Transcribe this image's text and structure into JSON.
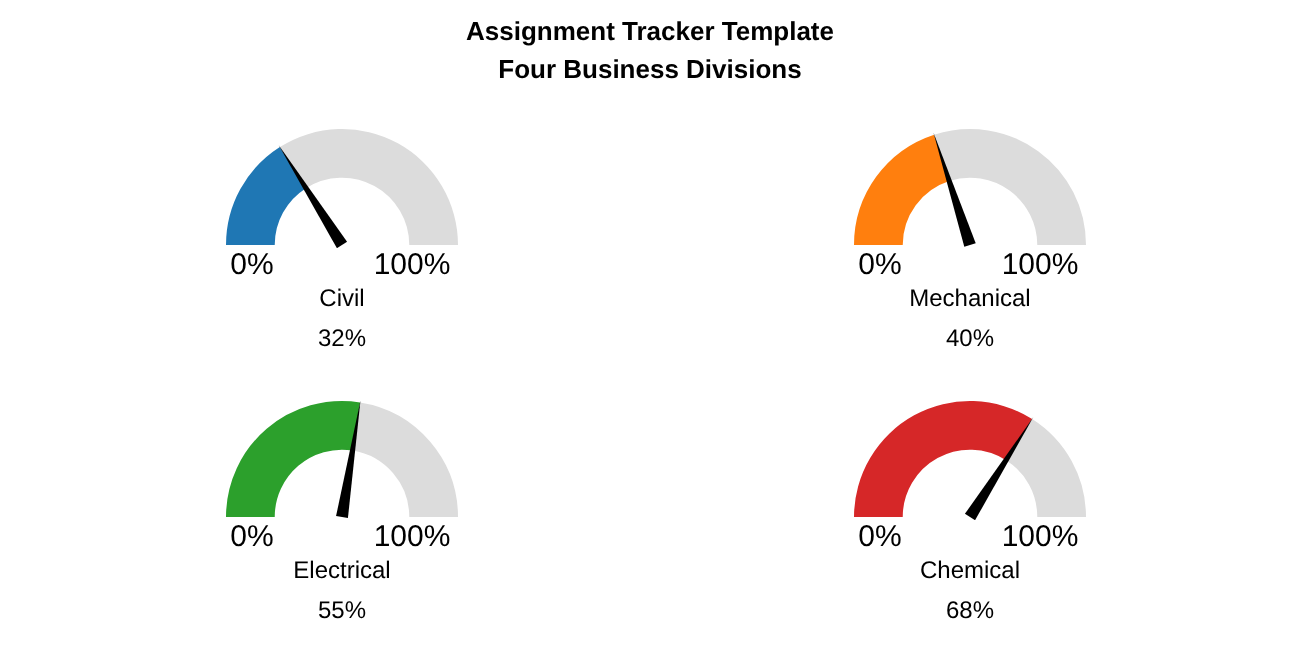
{
  "chart_data": [
    {
      "type": "other",
      "title": "Assignment Tracker Template",
      "subtitle": "Four Business Divisions"
    },
    {
      "type": "donut",
      "title": "Civil",
      "categories": [
        null,
        null
      ],
      "values": [
        32,
        68
      ],
      "colors": [
        "#1f77b4",
        "#dcdcdc"
      ],
      "annotations": [
        "0%",
        "100%",
        "32%"
      ]
    },
    {
      "type": "donut",
      "title": "Mechanical",
      "categories": [
        null,
        null
      ],
      "values": [
        40,
        60
      ],
      "colors": [
        "#ff7f0e",
        "#dcdcdc"
      ],
      "annotations": [
        "0%",
        "100%",
        "40%"
      ]
    },
    {
      "type": "donut",
      "title": "Electrical",
      "categories": [
        null,
        null
      ],
      "values": [
        55,
        45
      ],
      "colors": [
        "#2ca02c",
        "#dcdcdc"
      ],
      "annotations": [
        "0%",
        "100%",
        "55%"
      ]
    },
    {
      "type": "donut",
      "title": "Chemical",
      "categories": [
        null,
        null
      ],
      "values": [
        68,
        32
      ],
      "colors": [
        "#d62728",
        "#dcdcdc"
      ],
      "annotations": [
        "0%",
        "100%",
        "68%"
      ]
    }
  ]
}
